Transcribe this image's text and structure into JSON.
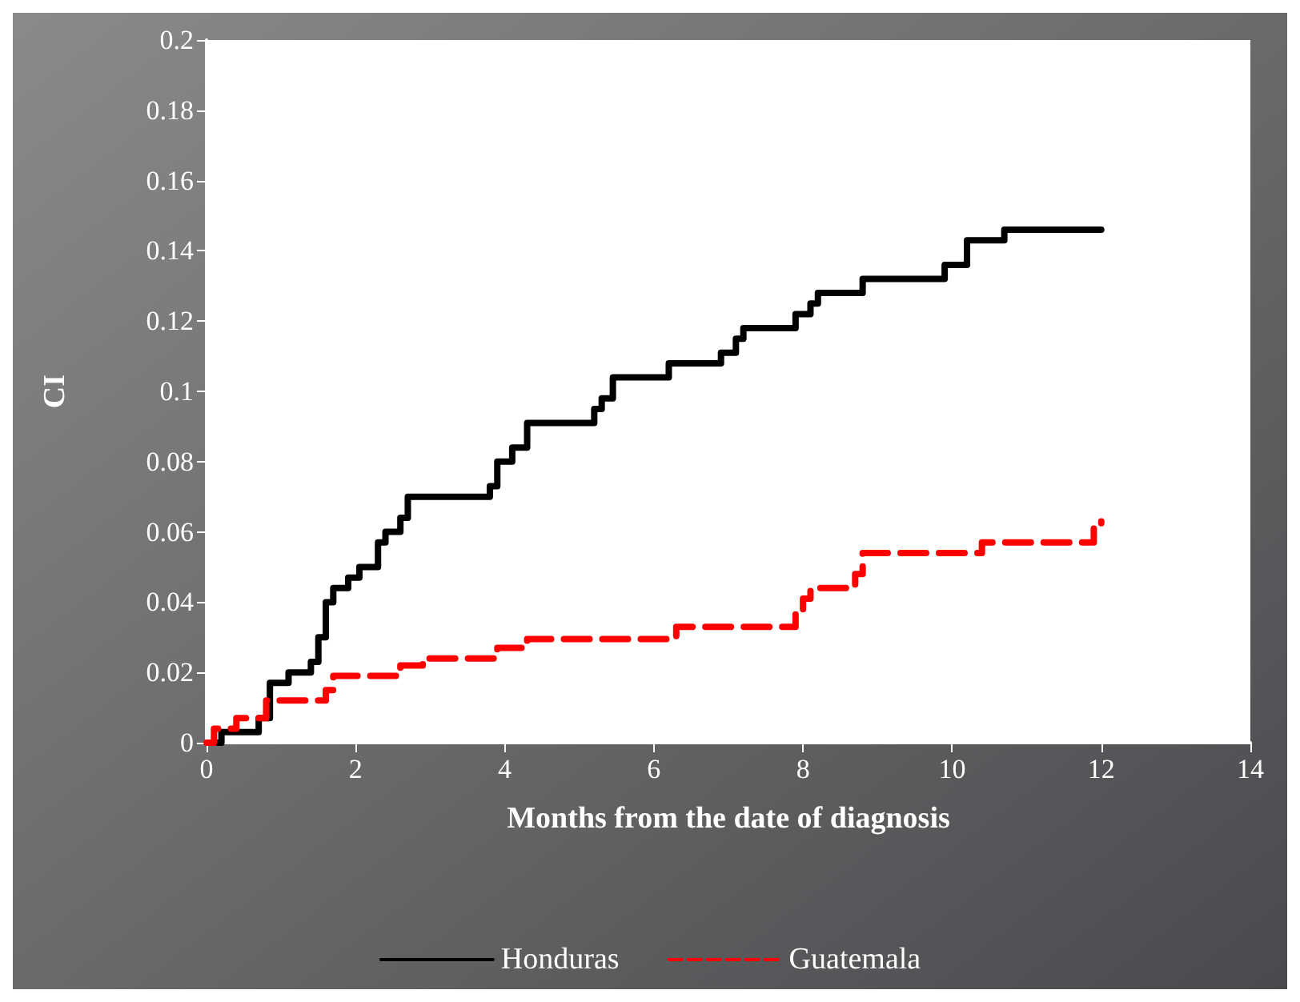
{
  "chart_data": {
    "type": "step",
    "xlabel": "Months from the date of diagnosis",
    "ylabel": "CI",
    "xlim": [
      0,
      14
    ],
    "xticks": [
      0,
      2,
      4,
      6,
      8,
      10,
      12,
      14
    ],
    "ylim": [
      0,
      0.2
    ],
    "yticks": [
      0,
      0.02,
      0.04,
      0.06,
      0.08,
      0.1,
      0.12,
      0.14,
      0.16,
      0.18,
      0.2
    ],
    "grid": false,
    "legend": "bottom",
    "marker": "none",
    "series": [
      {
        "name": "Honduras",
        "color": "#000000",
        "line_style": "solid",
        "x": [
          0.15,
          0.2,
          0.7,
          0.85,
          1.1,
          1.4,
          1.5,
          1.6,
          1.7,
          1.9,
          2.05,
          2.3,
          2.4,
          2.6,
          2.7,
          3.8,
          3.9,
          4.1,
          4.3,
          5.2,
          5.3,
          5.45,
          6.2,
          6.9,
          7.1,
          7.2,
          7.9,
          8.1,
          8.2,
          8.8,
          9.9,
          10.2,
          10.7,
          12
        ],
        "values": [
          0,
          0.003,
          0.007,
          0.017,
          0.02,
          0.023,
          0.03,
          0.04,
          0.044,
          0.047,
          0.05,
          0.057,
          0.06,
          0.064,
          0.07,
          0.073,
          0.08,
          0.084,
          0.091,
          0.095,
          0.098,
          0.104,
          0.108,
          0.111,
          0.115,
          0.118,
          0.122,
          0.125,
          0.128,
          0.132,
          0.136,
          0.143,
          0.146,
          0.146
        ]
      },
      {
        "name": "Guatemala",
        "color": "#ff0000",
        "line_style": "dashed",
        "x": [
          0,
          0.1,
          0.4,
          0.8,
          1.6,
          1.7,
          2.6,
          2.9,
          3.9,
          4.3,
          6.3,
          7.9,
          8.0,
          8.1,
          8.7,
          8.8,
          10.4,
          11.9,
          12
        ],
        "values": [
          0,
          0.004,
          0.007,
          0.012,
          0.015,
          0.019,
          0.022,
          0.024,
          0.027,
          0.0295,
          0.033,
          0.038,
          0.041,
          0.044,
          0.048,
          0.054,
          0.057,
          0.061,
          0.063
        ]
      }
    ]
  }
}
